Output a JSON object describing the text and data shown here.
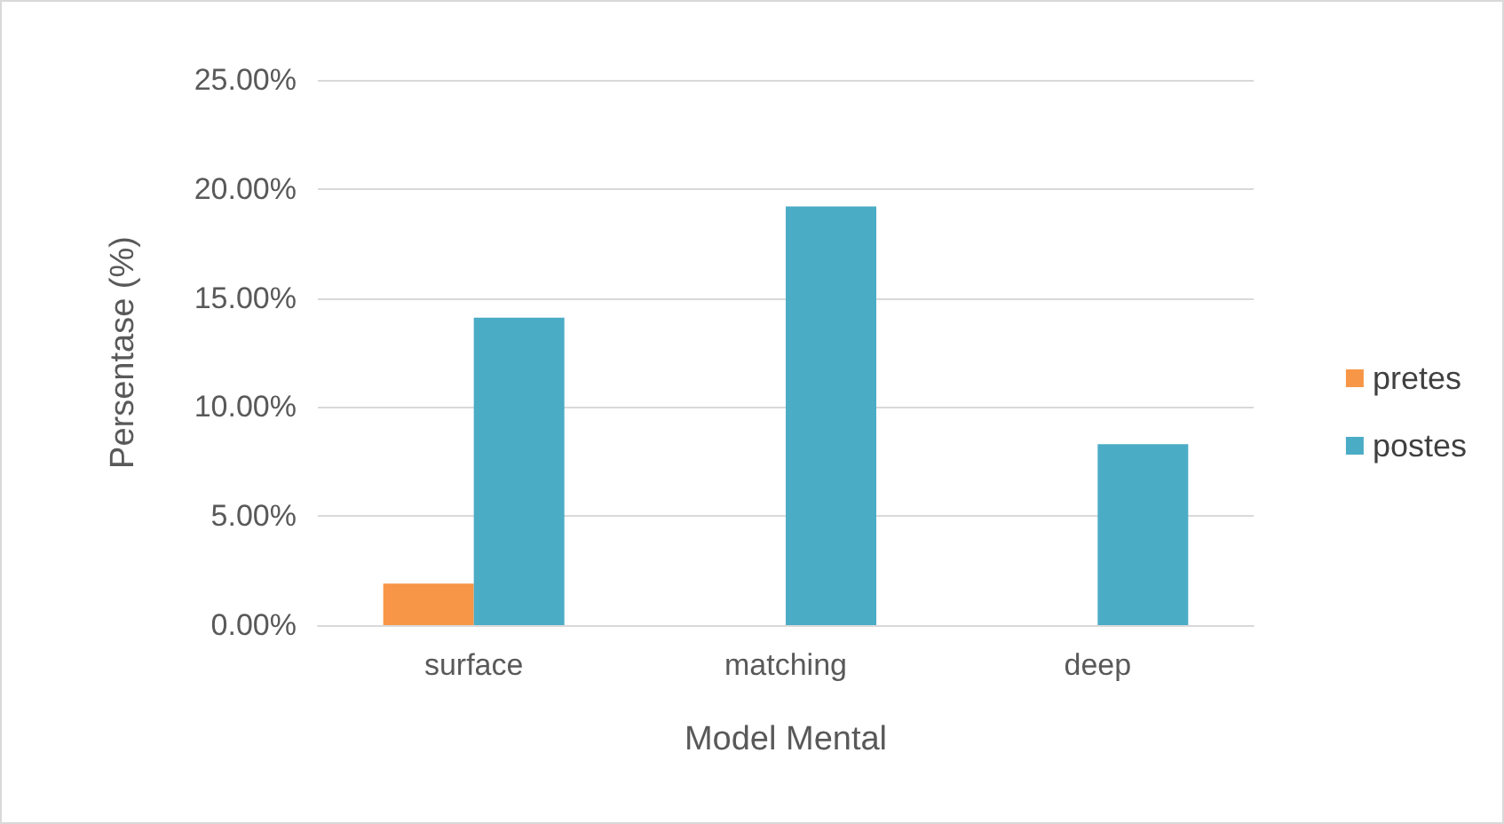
{
  "chart_data": {
    "type": "bar",
    "xlabel": "Model Mental",
    "ylabel": "Persentase (%)",
    "categories": [
      "surface",
      "matching",
      "deep"
    ],
    "series": [
      {
        "name": "pretes",
        "color": "#f79646",
        "values": [
          1.9,
          0,
          0
        ]
      },
      {
        "name": "postes",
        "color": "#4bacc6",
        "values": [
          14.1,
          19.2,
          8.3
        ]
      }
    ],
    "ylim": [
      0,
      25
    ],
    "yticks": [
      {
        "value": 0,
        "label": "0.00%"
      },
      {
        "value": 5,
        "label": "5.00%"
      },
      {
        "value": 10,
        "label": "10.00%"
      },
      {
        "value": 15,
        "label": "15.00%"
      },
      {
        "value": 20,
        "label": "20.00%"
      },
      {
        "value": 25,
        "label": "25.00%"
      }
    ],
    "grid": "y",
    "legend": "right"
  }
}
